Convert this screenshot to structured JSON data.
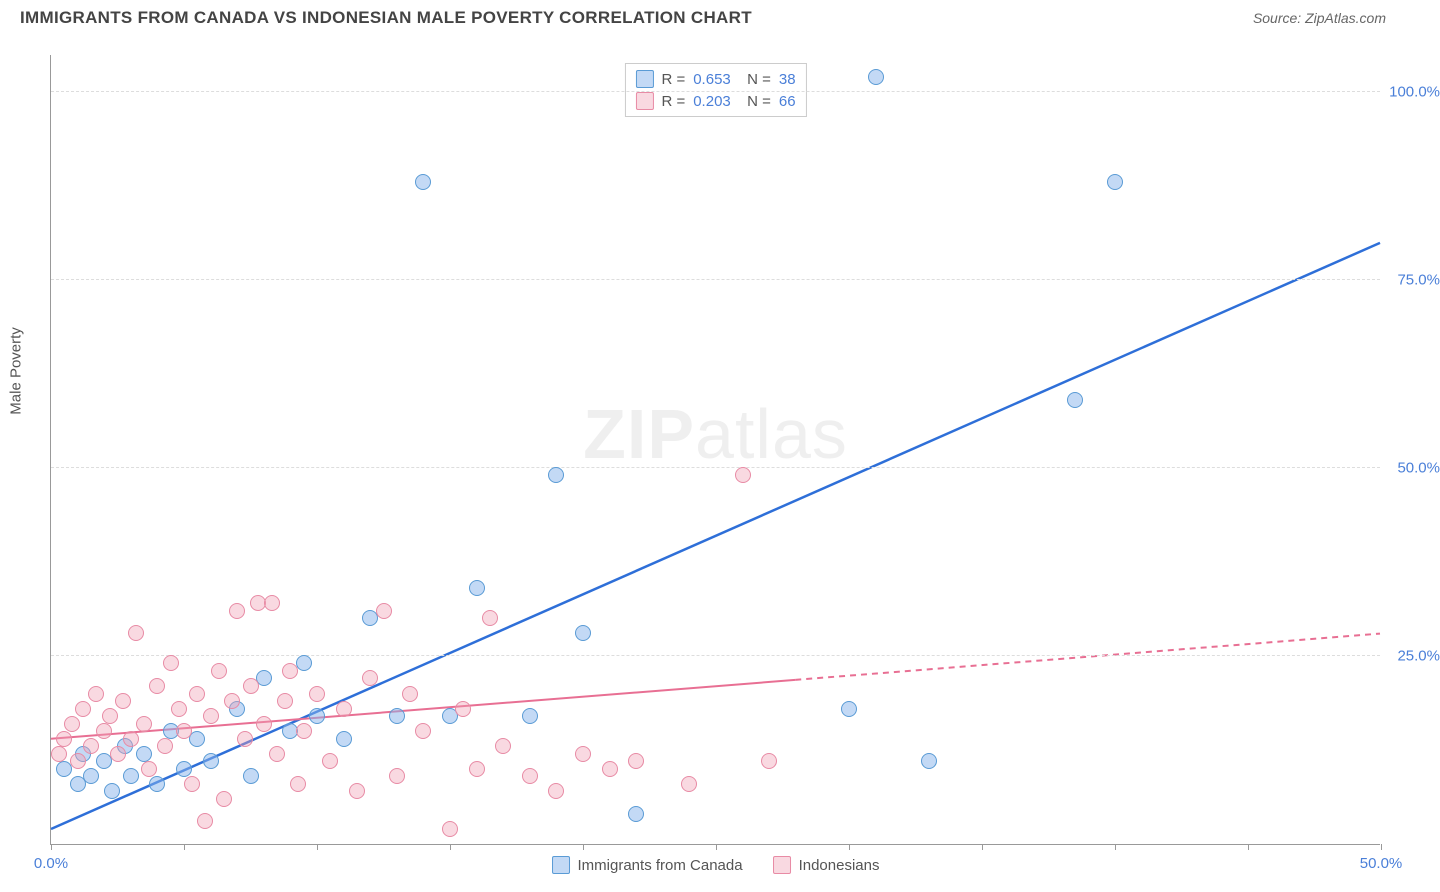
{
  "title": "IMMIGRANTS FROM CANADA VS INDONESIAN MALE POVERTY CORRELATION CHART",
  "source": "Source: ZipAtlas.com",
  "ylabel": "Male Poverty",
  "watermark_bold": "ZIP",
  "watermark_light": "atlas",
  "chart": {
    "type": "scatter",
    "xlim": [
      0,
      50
    ],
    "ylim": [
      0,
      105
    ],
    "background_color": "#ffffff",
    "grid_color": "#dddddd",
    "axis_color": "#999999",
    "tick_label_color": "#4a7fd8",
    "tick_fontsize": 15,
    "ylabel_fontsize": 15,
    "yticks": [
      {
        "v": 25,
        "label": "25.0%"
      },
      {
        "v": 50,
        "label": "50.0%"
      },
      {
        "v": 75,
        "label": "75.0%"
      },
      {
        "v": 100,
        "label": "100.0%"
      }
    ],
    "xticks": [
      {
        "v": 0,
        "label": "0.0%"
      },
      {
        "v": 5,
        "label": ""
      },
      {
        "v": 10,
        "label": ""
      },
      {
        "v": 15,
        "label": ""
      },
      {
        "v": 20,
        "label": ""
      },
      {
        "v": 25,
        "label": ""
      },
      {
        "v": 30,
        "label": ""
      },
      {
        "v": 35,
        "label": ""
      },
      {
        "v": 40,
        "label": ""
      },
      {
        "v": 45,
        "label": ""
      },
      {
        "v": 50,
        "label": "50.0%"
      }
    ],
    "series": [
      {
        "key": "canada",
        "label": "Immigrants from Canada",
        "color_fill": "rgba(135,180,235,0.5)",
        "color_stroke": "#5a9bd5",
        "marker_class": "blue",
        "r": 0.653,
        "n": 38,
        "trend": {
          "x1": 0,
          "y1": 2,
          "x2": 50,
          "y2": 80,
          "stroke": "#2e6fd8",
          "width": 2.5,
          "solid_until_x": 50
        },
        "points": [
          [
            0.5,
            10
          ],
          [
            1,
            8
          ],
          [
            1.2,
            12
          ],
          [
            1.5,
            9
          ],
          [
            2,
            11
          ],
          [
            2.3,
            7
          ],
          [
            2.8,
            13
          ],
          [
            3,
            9
          ],
          [
            3.5,
            12
          ],
          [
            4,
            8
          ],
          [
            4.5,
            15
          ],
          [
            5,
            10
          ],
          [
            5.5,
            14
          ],
          [
            6,
            11
          ],
          [
            7,
            18
          ],
          [
            7.5,
            9
          ],
          [
            8,
            22
          ],
          [
            9,
            15
          ],
          [
            9.5,
            24
          ],
          [
            10,
            17
          ],
          [
            11,
            14
          ],
          [
            12,
            30
          ],
          [
            13,
            17
          ],
          [
            14,
            88
          ],
          [
            15,
            17
          ],
          [
            16,
            34
          ],
          [
            18,
            17
          ],
          [
            19,
            49
          ],
          [
            20,
            28
          ],
          [
            22,
            4
          ],
          [
            30,
            18
          ],
          [
            31,
            102
          ],
          [
            33,
            11
          ],
          [
            38.5,
            59
          ],
          [
            40,
            88
          ]
        ]
      },
      {
        "key": "indonesians",
        "label": "Indonesians",
        "color_fill": "rgba(240,160,180,0.4)",
        "color_stroke": "#e88ba5",
        "marker_class": "pink",
        "r": 0.203,
        "n": 66,
        "trend": {
          "x1": 0,
          "y1": 14,
          "x2": 50,
          "y2": 28,
          "stroke": "#e86f93",
          "width": 2,
          "solid_until_x": 28
        },
        "points": [
          [
            0.3,
            12
          ],
          [
            0.5,
            14
          ],
          [
            0.8,
            16
          ],
          [
            1,
            11
          ],
          [
            1.2,
            18
          ],
          [
            1.5,
            13
          ],
          [
            1.7,
            20
          ],
          [
            2,
            15
          ],
          [
            2.2,
            17
          ],
          [
            2.5,
            12
          ],
          [
            2.7,
            19
          ],
          [
            3,
            14
          ],
          [
            3.2,
            28
          ],
          [
            3.5,
            16
          ],
          [
            3.7,
            10
          ],
          [
            4,
            21
          ],
          [
            4.3,
            13
          ],
          [
            4.5,
            24
          ],
          [
            4.8,
            18
          ],
          [
            5,
            15
          ],
          [
            5.3,
            8
          ],
          [
            5.5,
            20
          ],
          [
            5.8,
            3
          ],
          [
            6,
            17
          ],
          [
            6.3,
            23
          ],
          [
            6.5,
            6
          ],
          [
            6.8,
            19
          ],
          [
            7,
            31
          ],
          [
            7.3,
            14
          ],
          [
            7.5,
            21
          ],
          [
            7.8,
            32
          ],
          [
            8,
            16
          ],
          [
            8.3,
            32
          ],
          [
            8.5,
            12
          ],
          [
            8.8,
            19
          ],
          [
            9,
            23
          ],
          [
            9.3,
            8
          ],
          [
            9.5,
            15
          ],
          [
            10,
            20
          ],
          [
            10.5,
            11
          ],
          [
            11,
            18
          ],
          [
            11.5,
            7
          ],
          [
            12,
            22
          ],
          [
            12.5,
            31
          ],
          [
            13,
            9
          ],
          [
            13.5,
            20
          ],
          [
            14,
            15
          ],
          [
            15,
            2
          ],
          [
            15.5,
            18
          ],
          [
            16,
            10
          ],
          [
            16.5,
            30
          ],
          [
            17,
            13
          ],
          [
            18,
            9
          ],
          [
            19,
            7
          ],
          [
            20,
            12
          ],
          [
            21,
            10
          ],
          [
            22,
            11
          ],
          [
            24,
            8
          ],
          [
            26,
            49
          ],
          [
            27,
            11
          ]
        ]
      }
    ],
    "legend_bottom": [
      {
        "label": "Immigrants from Canada",
        "class": "blue"
      },
      {
        "label": "Indonesians",
        "class": "pink"
      }
    ]
  }
}
